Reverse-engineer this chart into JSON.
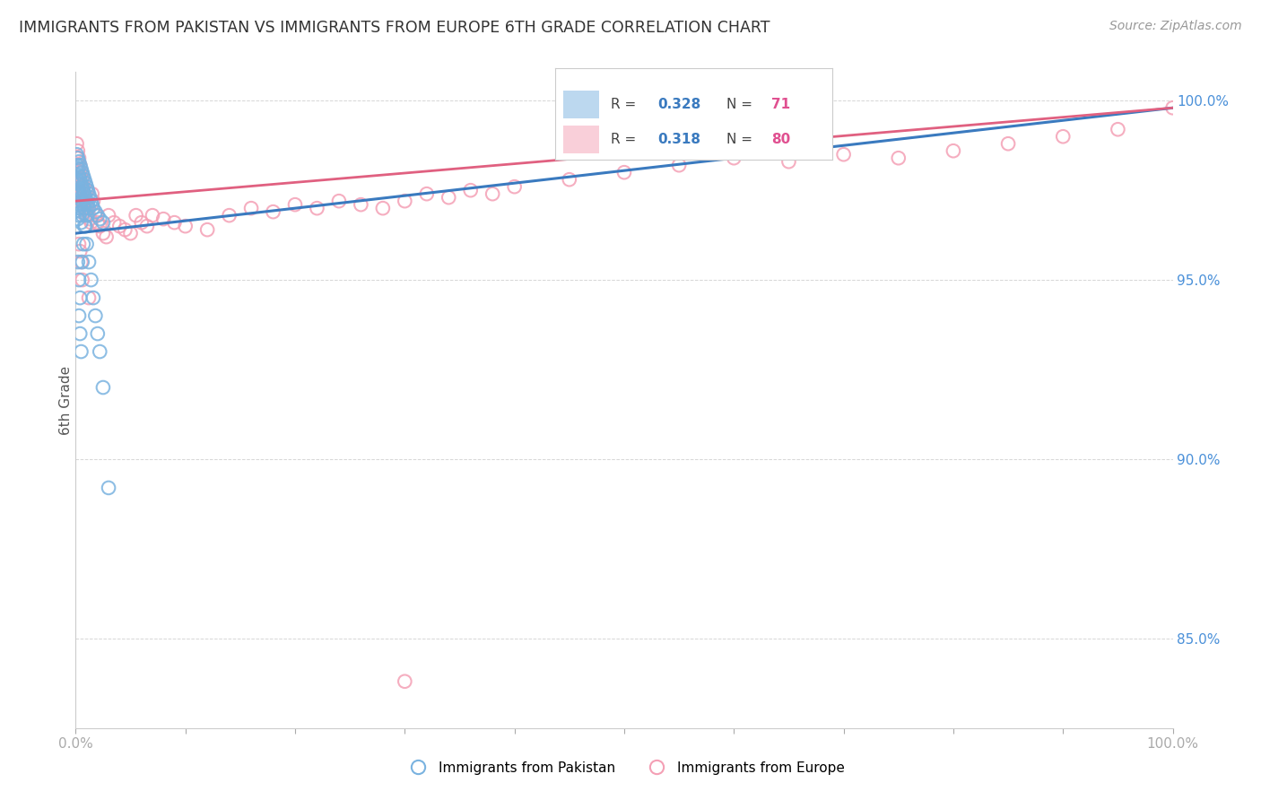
{
  "title": "IMMIGRANTS FROM PAKISTAN VS IMMIGRANTS FROM EUROPE 6TH GRADE CORRELATION CHART",
  "source": "Source: ZipAtlas.com",
  "ylabel_left": "6th Grade",
  "pakistan_color": "#7ab3e0",
  "europe_color": "#f4a0b5",
  "pakistan_line_color": "#3a7abf",
  "europe_line_color": "#e06080",
  "right_axis_color": "#4a90d9",
  "title_color": "#333333",
  "source_color": "#999999",
  "grid_color": "#cccccc",
  "background_color": "#ffffff",
  "xlim": [
    0.0,
    1.0
  ],
  "ylim": [
    0.825,
    1.008
  ],
  "right_yticks": [
    0.85,
    0.9,
    0.95,
    1.0
  ],
  "pakistan_r": "0.328",
  "pakistan_n": "71",
  "europe_r": "0.318",
  "europe_n": "80",
  "pakistan_x": [
    0.001,
    0.001,
    0.001,
    0.001,
    0.001,
    0.002,
    0.002,
    0.002,
    0.002,
    0.002,
    0.002,
    0.003,
    0.003,
    0.003,
    0.003,
    0.003,
    0.004,
    0.004,
    0.004,
    0.004,
    0.005,
    0.005,
    0.005,
    0.005,
    0.005,
    0.006,
    0.006,
    0.006,
    0.006,
    0.007,
    0.007,
    0.007,
    0.008,
    0.008,
    0.008,
    0.009,
    0.009,
    0.01,
    0.01,
    0.01,
    0.011,
    0.011,
    0.012,
    0.012,
    0.013,
    0.014,
    0.015,
    0.016,
    0.018,
    0.02,
    0.022,
    0.025,
    0.002,
    0.003,
    0.004,
    0.003,
    0.004,
    0.005,
    0.006,
    0.007,
    0.008,
    0.009,
    0.01,
    0.012,
    0.014,
    0.016,
    0.018,
    0.02,
    0.022,
    0.025,
    0.03
  ],
  "pakistan_y": [
    0.985,
    0.982,
    0.978,
    0.975,
    0.972,
    0.984,
    0.981,
    0.977,
    0.974,
    0.97,
    0.967,
    0.983,
    0.979,
    0.975,
    0.971,
    0.968,
    0.982,
    0.978,
    0.974,
    0.97,
    0.981,
    0.977,
    0.973,
    0.969,
    0.966,
    0.98,
    0.976,
    0.972,
    0.968,
    0.979,
    0.975,
    0.971,
    0.978,
    0.974,
    0.97,
    0.977,
    0.973,
    0.976,
    0.972,
    0.968,
    0.975,
    0.971,
    0.974,
    0.97,
    0.973,
    0.972,
    0.971,
    0.97,
    0.969,
    0.968,
    0.967,
    0.966,
    0.955,
    0.95,
    0.945,
    0.94,
    0.935,
    0.93,
    0.955,
    0.96,
    0.965,
    0.965,
    0.96,
    0.955,
    0.95,
    0.945,
    0.94,
    0.935,
    0.93,
    0.92,
    0.892
  ],
  "europe_x": [
    0.001,
    0.001,
    0.002,
    0.002,
    0.002,
    0.003,
    0.003,
    0.003,
    0.004,
    0.004,
    0.004,
    0.005,
    0.005,
    0.005,
    0.006,
    0.006,
    0.007,
    0.007,
    0.008,
    0.008,
    0.009,
    0.009,
    0.01,
    0.01,
    0.011,
    0.012,
    0.013,
    0.014,
    0.015,
    0.016,
    0.018,
    0.02,
    0.022,
    0.025,
    0.028,
    0.03,
    0.035,
    0.04,
    0.045,
    0.05,
    0.055,
    0.06,
    0.065,
    0.07,
    0.08,
    0.09,
    0.1,
    0.12,
    0.14,
    0.16,
    0.18,
    0.2,
    0.22,
    0.24,
    0.26,
    0.28,
    0.3,
    0.32,
    0.34,
    0.36,
    0.38,
    0.4,
    0.45,
    0.5,
    0.55,
    0.6,
    0.65,
    0.7,
    0.75,
    0.8,
    0.85,
    0.9,
    0.95,
    1.0,
    0.003,
    0.004,
    0.005,
    0.006,
    0.012,
    0.3
  ],
  "europe_y": [
    0.988,
    0.984,
    0.986,
    0.982,
    0.978,
    0.984,
    0.98,
    0.976,
    0.982,
    0.978,
    0.974,
    0.98,
    0.976,
    0.972,
    0.978,
    0.974,
    0.976,
    0.972,
    0.974,
    0.97,
    0.972,
    0.968,
    0.975,
    0.971,
    0.97,
    0.968,
    0.967,
    0.966,
    0.974,
    0.972,
    0.968,
    0.966,
    0.965,
    0.963,
    0.962,
    0.968,
    0.966,
    0.965,
    0.964,
    0.963,
    0.968,
    0.966,
    0.965,
    0.968,
    0.967,
    0.966,
    0.965,
    0.964,
    0.968,
    0.97,
    0.969,
    0.971,
    0.97,
    0.972,
    0.971,
    0.97,
    0.972,
    0.974,
    0.973,
    0.975,
    0.974,
    0.976,
    0.978,
    0.98,
    0.982,
    0.984,
    0.983,
    0.985,
    0.984,
    0.986,
    0.988,
    0.99,
    0.992,
    0.998,
    0.96,
    0.958,
    0.955,
    0.95,
    0.945,
    0.838
  ]
}
